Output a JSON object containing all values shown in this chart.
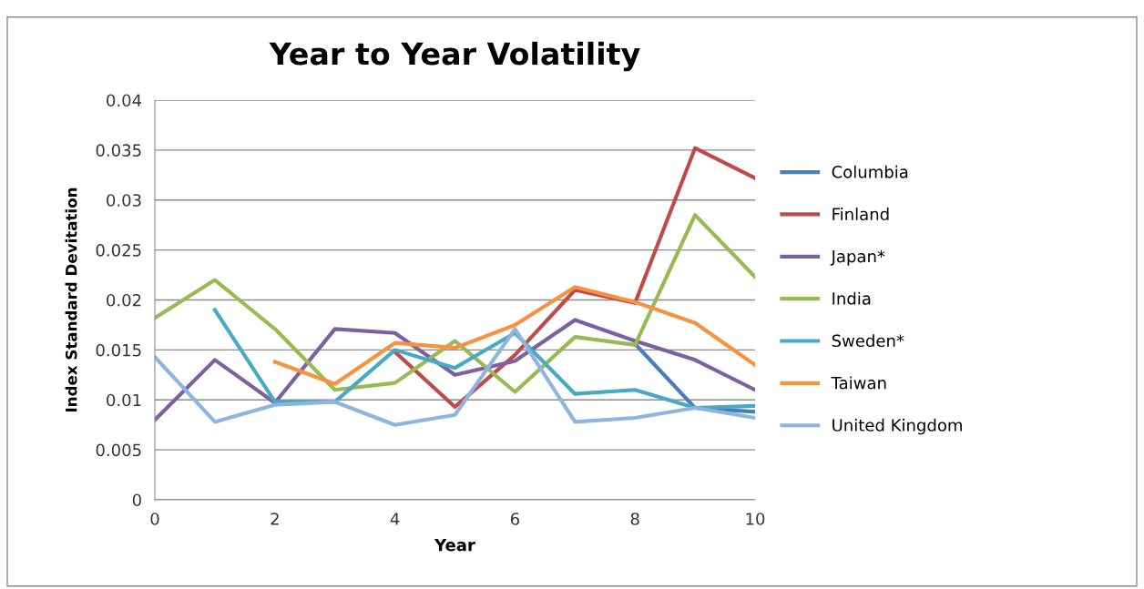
{
  "chart_data": {
    "type": "line",
    "title": "Year to Year Volatility",
    "xlabel": "Year",
    "ylabel": "Index Standard Devitation",
    "x": [
      0,
      1,
      2,
      3,
      4,
      5,
      6,
      7,
      8,
      9,
      10
    ],
    "xlim": [
      0,
      10
    ],
    "xticks": [
      0,
      2,
      4,
      6,
      8,
      10
    ],
    "ylim": [
      0,
      0.04
    ],
    "yticks": [
      0,
      0.005,
      0.01,
      0.015,
      0.02,
      0.025,
      0.03,
      0.035,
      0.04
    ],
    "grid": "y",
    "legend": "right",
    "marker": "none",
    "series": [
      {
        "name": "Columbia",
        "color": "#4a7ebb",
        "values": [
          null,
          null,
          null,
          null,
          null,
          null,
          null,
          null,
          0.0156,
          0.0092,
          0.0088
        ]
      },
      {
        "name": "Finland",
        "color": "#be4b48",
        "values": [
          null,
          null,
          null,
          null,
          0.0148,
          0.0093,
          0.0145,
          0.021,
          0.0197,
          0.0352,
          0.0322
        ]
      },
      {
        "name": "Japan*",
        "color": "#7d60a0",
        "values": [
          0.008,
          0.014,
          0.0097,
          0.0171,
          0.0167,
          0.0125,
          0.0139,
          0.018,
          0.0159,
          0.014,
          0.011
        ]
      },
      {
        "name": "India",
        "color": "#98b954",
        "values": [
          0.0182,
          0.022,
          0.0171,
          0.011,
          0.0117,
          0.0159,
          0.0108,
          0.0163,
          0.0155,
          0.0285,
          0.0223
        ]
      },
      {
        "name": "Sweden*",
        "color": "#46aac5",
        "values": [
          null,
          0.019,
          0.0098,
          0.0098,
          0.015,
          0.0132,
          0.0167,
          0.0106,
          0.011,
          0.0092,
          0.0094
        ]
      },
      {
        "name": "Taiwan",
        "color": "#f69240",
        "values": [
          null,
          null,
          0.0138,
          0.0116,
          0.0157,
          0.0152,
          0.0175,
          0.0213,
          0.0198,
          0.0177,
          0.0135
        ]
      },
      {
        "name": "United Kingdom",
        "color": "#8eb4e3",
        "values": [
          0.0143,
          0.0078,
          0.0095,
          0.0098,
          0.0075,
          0.0085,
          0.0171,
          0.0078,
          0.0082,
          0.0092,
          0.0082
        ]
      }
    ]
  }
}
